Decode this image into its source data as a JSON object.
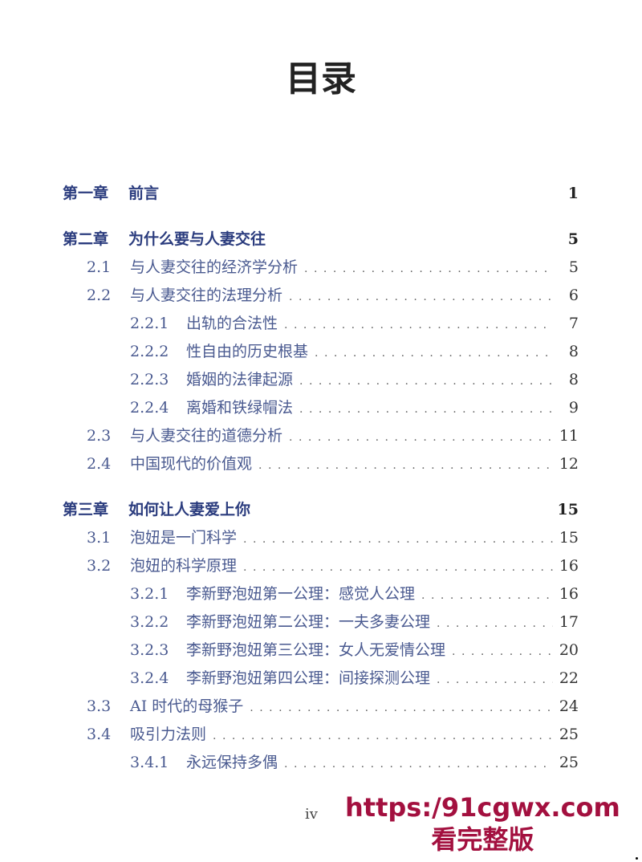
{
  "title": "目录",
  "entries": [
    {
      "level": "ch",
      "num": "第一章",
      "text": "前言",
      "page": "1"
    },
    {
      "level": "ch",
      "num": "第二章",
      "text": "为什么要与人妻交往",
      "page": "5"
    },
    {
      "level": "sec",
      "num": "2.1",
      "text": "与人妻交往的经济学分析",
      "page": "5"
    },
    {
      "level": "sec",
      "num": "2.2",
      "text": "与人妻交往的法理分析",
      "page": "6"
    },
    {
      "level": "sub",
      "num": "2.2.1",
      "text": "出轨的合法性",
      "page": "7"
    },
    {
      "level": "sub",
      "num": "2.2.2",
      "text": "性自由的历史根基",
      "page": "8"
    },
    {
      "level": "sub",
      "num": "2.2.3",
      "text": "婚姻的法律起源",
      "page": "8"
    },
    {
      "level": "sub",
      "num": "2.2.4",
      "text": "离婚和铁绿帽法",
      "page": "9"
    },
    {
      "level": "sec",
      "num": "2.3",
      "text": "与人妻交往的道德分析",
      "page": "11"
    },
    {
      "level": "sec",
      "num": "2.4",
      "text": "中国现代的价值观",
      "page": "12"
    },
    {
      "level": "ch",
      "num": "第三章",
      "text": "如何让人妻爱上你",
      "page": "15"
    },
    {
      "level": "sec",
      "num": "3.1",
      "text": "泡妞是一门科学",
      "page": "15"
    },
    {
      "level": "sec",
      "num": "3.2",
      "text": "泡妞的科学原理",
      "page": "16"
    },
    {
      "level": "sub",
      "num": "3.2.1",
      "text": "李新野泡妞第一公理：感觉人公理",
      "page": "16"
    },
    {
      "level": "sub",
      "num": "3.2.2",
      "text": "李新野泡妞第二公理：一夫多妻公理",
      "page": "17"
    },
    {
      "level": "sub",
      "num": "3.2.3",
      "text": "李新野泡妞第三公理：女人无爱情公理",
      "page": "20"
    },
    {
      "level": "sub",
      "num": "3.2.4",
      "text": "李新野泡妞第四公理：间接探测公理",
      "page": "22"
    },
    {
      "level": "sec",
      "num": "3.3",
      "text": "AI 时代的母猴子",
      "page": "24"
    },
    {
      "level": "sec",
      "num": "3.4",
      "text": "吸引力法则",
      "page": "25"
    },
    {
      "level": "sub",
      "num": "3.4.1",
      "text": "永远保持多偶",
      "page": "25"
    }
  ],
  "footer": {
    "page_number": "iv"
  },
  "watermark": {
    "line1": "https:/91cgwx.com",
    "line2": "看完整版",
    "color": "#a3103f"
  }
}
